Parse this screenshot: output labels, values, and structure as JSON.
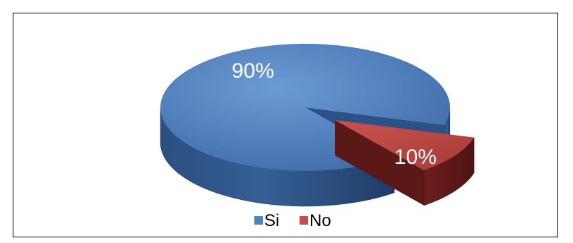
{
  "chart_data": {
    "type": "pie",
    "style": "3d-exploded",
    "categories": [
      "Si",
      "No"
    ],
    "values": [
      90,
      10
    ],
    "data_labels": [
      "90%",
      "10%"
    ],
    "colors": [
      "#4F81BD",
      "#C0504D"
    ],
    "legend_position": "bottom"
  }
}
